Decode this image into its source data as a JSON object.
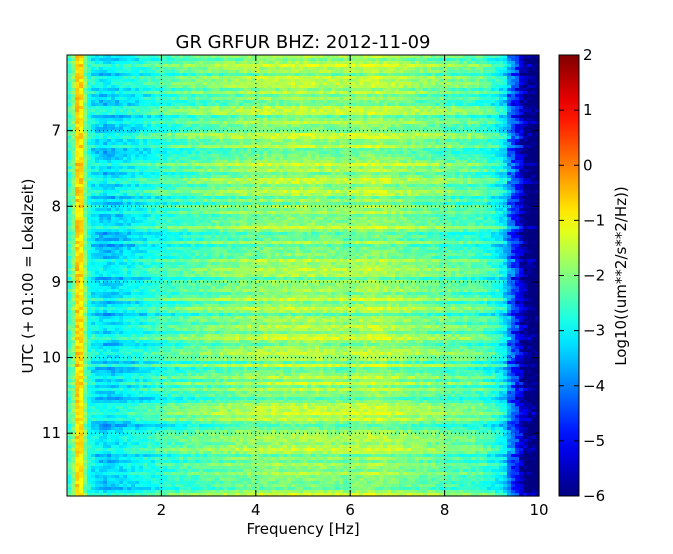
{
  "chart_data": {
    "type": "heatmap",
    "title": "GR GRFUR BHZ: 2012-11-09",
    "xlabel": "Frequency [Hz]",
    "ylabel": "UTC (+ 01:00 = Lokalzeit)",
    "colorbar_label": "Log10((um**2/s**2/Hz))",
    "xlim": [
      0.0,
      10.0
    ],
    "ylim": [
      6.0,
      11.83
    ],
    "y_inverted": true,
    "x_ticks": [
      2,
      4,
      6,
      8,
      10
    ],
    "y_ticks": [
      7,
      8,
      9,
      10,
      11
    ],
    "clim": [
      -6,
      2
    ],
    "colorbar_ticks": [
      2,
      1,
      0,
      -1,
      -2,
      -3,
      -4,
      -5,
      -6
    ],
    "colormap": "jet",
    "grid": true,
    "spectrum_profile": {
      "frequency_hz": [
        0.0,
        0.1,
        0.15,
        0.2,
        0.25,
        0.3,
        0.35,
        0.4,
        0.45,
        0.5,
        0.6,
        0.8,
        1.0,
        1.5,
        2.0,
        3.0,
        4.0,
        5.0,
        6.0,
        6.5,
        7.0,
        8.0,
        8.8,
        9.1,
        9.3,
        9.5,
        9.7,
        10.0
      ],
      "log10_power": [
        -2.6,
        -2.4,
        -1.6,
        -0.7,
        -0.5,
        -0.8,
        -1.6,
        -2.3,
        -2.7,
        -2.9,
        -3.1,
        -3.3,
        -3.2,
        -2.9,
        -2.6,
        -2.2,
        -1.9,
        -1.8,
        -1.9,
        -1.7,
        -1.9,
        -2.2,
        -2.4,
        -2.8,
        -3.3,
        -4.2,
        -5.5,
        -6.0
      ]
    }
  }
}
